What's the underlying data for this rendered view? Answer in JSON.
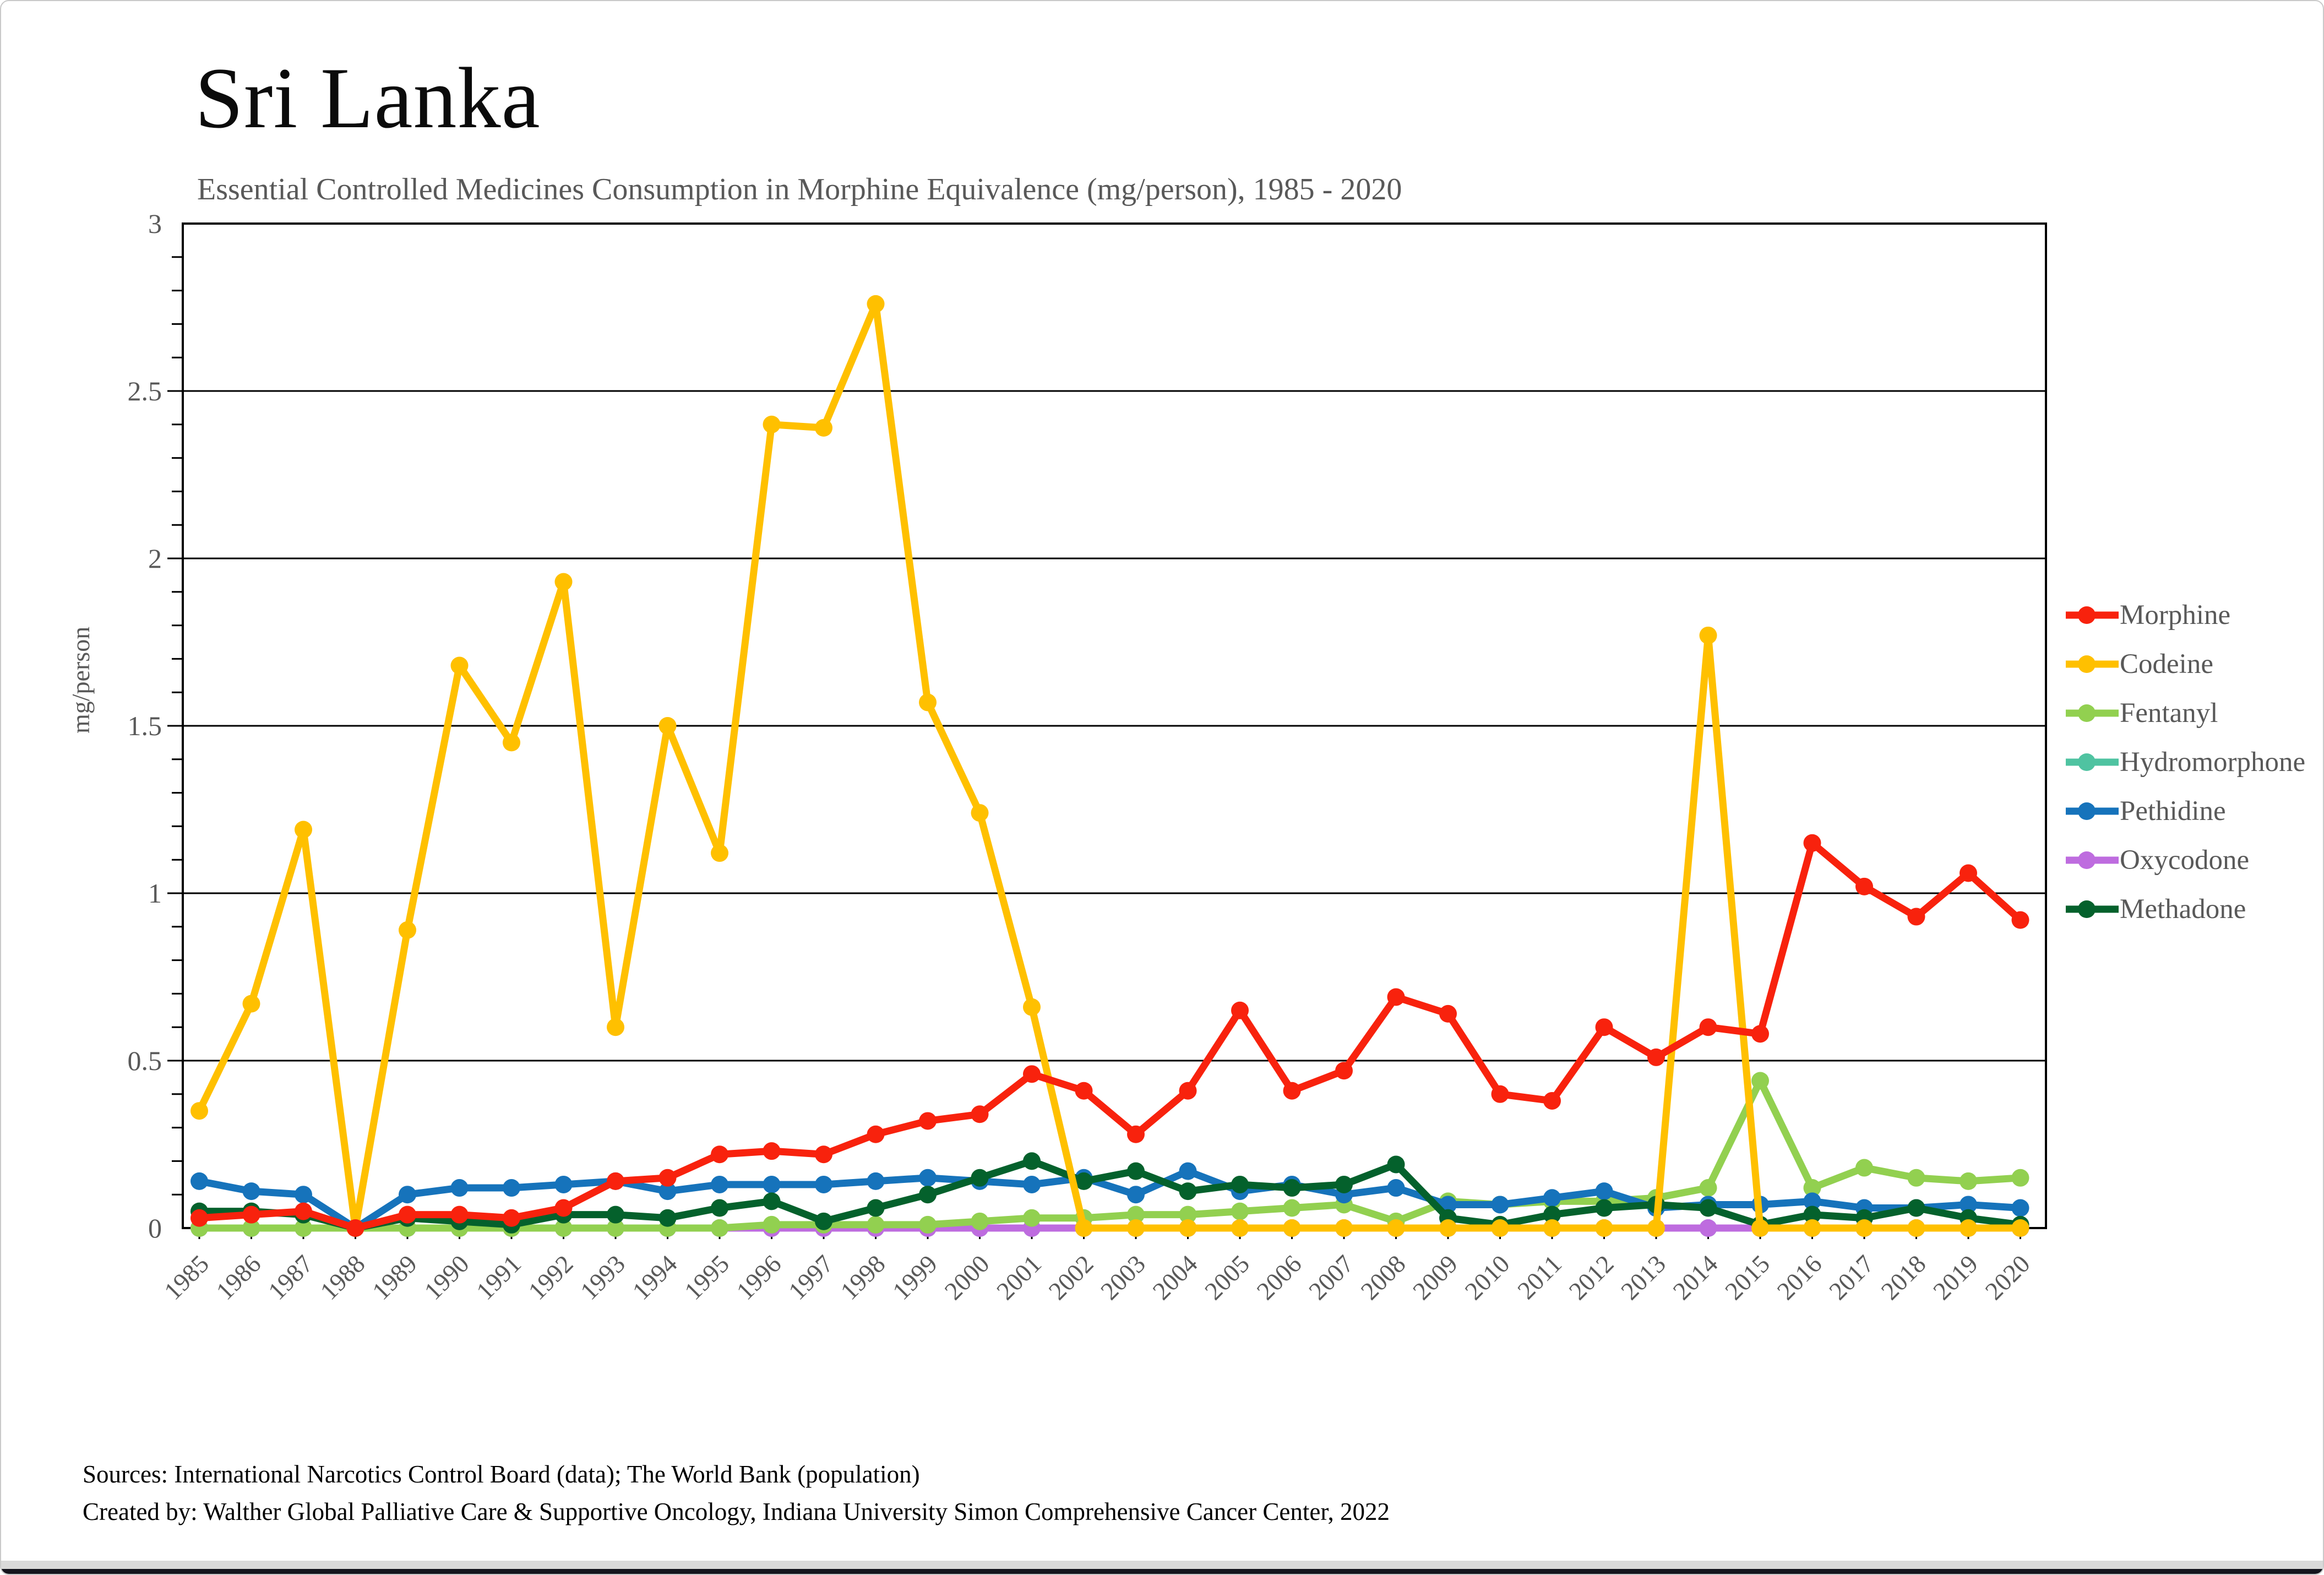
{
  "header": {
    "title": "Sri Lanka",
    "subtitle": "Essential Controlled Medicines Consumption in Morphine Equivalence (mg/person), 1985 - 2020"
  },
  "footer": {
    "sources_line1": "Sources: International Narcotics Control Board (data); The World Bank (population)",
    "sources_line2": "Created by: Walther Global Palliative Care & Supportive Oncology, Indiana University Simon Comprehensive Cancer Center, 2022"
  },
  "chart_data": {
    "type": "line",
    "title": "Sri Lanka",
    "subtitle": "Essential Controlled Medicines Consumption in Morphine Equivalence (mg/person), 1985 - 2020",
    "xlabel": "",
    "ylabel": "mg/person",
    "ylim": [
      0,
      3
    ],
    "yticks": [
      0,
      0.5,
      1,
      1.5,
      2,
      2.5,
      3
    ],
    "grid": "horizontal",
    "legend_position": "right",
    "marker": "circle",
    "axis_color": "#000000",
    "text_color": "#595959",
    "categories": [
      "1985",
      "1986",
      "1987",
      "1988",
      "1989",
      "1990",
      "1991",
      "1992",
      "1993",
      "1994",
      "1995",
      "1996",
      "1997",
      "1998",
      "1999",
      "2000",
      "2001",
      "2002",
      "2003",
      "2004",
      "2005",
      "2006",
      "2007",
      "2008",
      "2009",
      "2010",
      "2011",
      "2012",
      "2013",
      "2014",
      "2015",
      "2016",
      "2017",
      "2018",
      "2019",
      "2020"
    ],
    "series": [
      {
        "name": "Morphine",
        "color": "#f8220d",
        "values": [
          0.03,
          0.04,
          0.05,
          0,
          0.04,
          0.04,
          0.03,
          0.06,
          0.14,
          0.15,
          0.22,
          0.23,
          0.22,
          0.28,
          0.32,
          0.34,
          0.46,
          0.41,
          0.28,
          0.41,
          0.65,
          0.41,
          0.47,
          0.69,
          0.64,
          0.4,
          0.38,
          0.6,
          0.51,
          0.6,
          0.58,
          1.15,
          1.02,
          0.93,
          1.06,
          0.92
        ]
      },
      {
        "name": "Codeine",
        "color": "#ffc000",
        "values": [
          0.35,
          0.67,
          1.19,
          0,
          0.89,
          1.68,
          1.45,
          1.93,
          0.6,
          1.5,
          1.12,
          2.4,
          2.39,
          2.76,
          1.57,
          1.24,
          0.66,
          0,
          0,
          0,
          0,
          0,
          0,
          0,
          0,
          0,
          0,
          0,
          0,
          1.77,
          0,
          0,
          0,
          0,
          0,
          0
        ]
      },
      {
        "name": "Fentanyl",
        "color": "#92d050",
        "values": [
          0,
          0,
          0,
          0,
          0,
          0,
          0,
          0,
          0,
          0,
          0,
          0.01,
          0.01,
          0.01,
          0.01,
          0.02,
          0.03,
          0.03,
          0.04,
          0.04,
          0.05,
          0.06,
          0.07,
          0.02,
          0.08,
          0.07,
          0.08,
          0.08,
          0.09,
          0.12,
          0.44,
          0.12,
          0.18,
          0.15,
          0.14,
          0.15
        ]
      },
      {
        "name": "Hydromorphone",
        "color": "#4fc3a1",
        "values": [
          0,
          0,
          0,
          0,
          0,
          0,
          0,
          0,
          0,
          0,
          0,
          0,
          0,
          0,
          0,
          0,
          0,
          0,
          0,
          0,
          0,
          0,
          0,
          0,
          0,
          0,
          0,
          0,
          0,
          0,
          0,
          0,
          0,
          0,
          0,
          0
        ]
      },
      {
        "name": "Pethidine",
        "color": "#1673bb",
        "values": [
          0.14,
          0.11,
          0.1,
          0,
          0.1,
          0.12,
          0.12,
          0.13,
          0.14,
          0.11,
          0.13,
          0.13,
          0.13,
          0.14,
          0.15,
          0.14,
          0.13,
          0.15,
          0.1,
          0.17,
          0.11,
          0.13,
          0.1,
          0.12,
          0.07,
          0.07,
          0.09,
          0.11,
          0.06,
          0.07,
          0.07,
          0.08,
          0.06,
          0.06,
          0.07,
          0.06
        ]
      },
      {
        "name": "Oxycodone",
        "color": "#be6cdf",
        "values": [
          0,
          0,
          0,
          0,
          0,
          0,
          0,
          0,
          0,
          0,
          0,
          0,
          0,
          0,
          0,
          0,
          0,
          0,
          0,
          0,
          0,
          0,
          0,
          0,
          0,
          0,
          0,
          0,
          0,
          0,
          0,
          0,
          0,
          0,
          0,
          0
        ]
      },
      {
        "name": "Methadone",
        "color": "#04612c",
        "values": [
          0.05,
          0.05,
          0.04,
          0,
          0.03,
          0.02,
          0.01,
          0.04,
          0.04,
          0.03,
          0.06,
          0.08,
          0.02,
          0.06,
          0.1,
          0.15,
          0.2,
          0.14,
          0.17,
          0.11,
          0.13,
          0.12,
          0.13,
          0.19,
          0.03,
          0.01,
          0.04,
          0.06,
          0.07,
          0.06,
          0.01,
          0.04,
          0.03,
          0.06,
          0.03,
          0.01
        ]
      }
    ],
    "draw_order": [
      3,
      5,
      2,
      4,
      6,
      1,
      0
    ]
  }
}
